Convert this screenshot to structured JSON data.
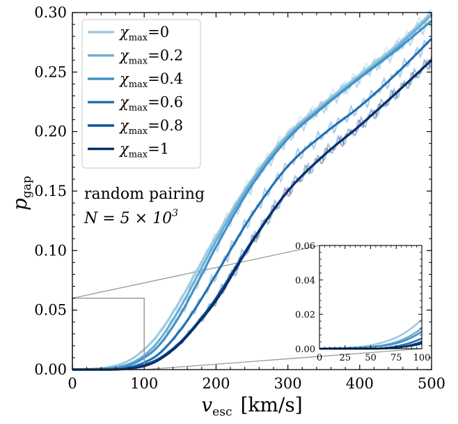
{
  "chart_data": {
    "type": "line",
    "xlabel_main": "v",
    "xlabel_sub": "esc",
    "xlabel_unit": "[km/s]",
    "ylabel_main": "p",
    "ylabel_sub": "gap",
    "xlim": [
      0,
      500
    ],
    "ylim": [
      0,
      0.3
    ],
    "xticks": [
      "0",
      "100",
      "200",
      "300",
      "400",
      "500"
    ],
    "yticks": [
      "0.00",
      "0.05",
      "0.10",
      "0.15",
      "0.20",
      "0.25",
      "0.30"
    ],
    "grid": false,
    "legend_position": "top-left",
    "annotation_line1": "random pairing",
    "annotation_line2_prefix": "N = 5 × 10",
    "annotation_line2_exp": "3",
    "legend_symbol": "χ",
    "legend_sub": "max",
    "series": [
      {
        "name": "0",
        "color": "#9ecae1",
        "x": [
          0,
          50,
          80,
          100,
          120,
          150,
          175,
          200,
          250,
          300,
          350,
          400,
          450,
          500
        ],
        "y": [
          0,
          0.002,
          0.008,
          0.017,
          0.03,
          0.058,
          0.085,
          0.112,
          0.16,
          0.198,
          0.224,
          0.248,
          0.272,
          0.3
        ]
      },
      {
        "name": "0.2",
        "color": "#6baed6",
        "x": [
          0,
          50,
          80,
          100,
          120,
          150,
          175,
          200,
          250,
          300,
          350,
          400,
          450,
          500
        ],
        "y": [
          0,
          0.001,
          0.005,
          0.012,
          0.024,
          0.052,
          0.08,
          0.108,
          0.158,
          0.196,
          0.222,
          0.246,
          0.27,
          0.298
        ]
      },
      {
        "name": "0.4",
        "color": "#4292c6",
        "x": [
          0,
          50,
          80,
          100,
          120,
          150,
          175,
          200,
          250,
          300,
          350,
          400,
          450,
          500
        ],
        "y": [
          0,
          0.001,
          0.004,
          0.01,
          0.02,
          0.046,
          0.074,
          0.103,
          0.155,
          0.194,
          0.221,
          0.245,
          0.268,
          0.293
        ]
      },
      {
        "name": "0.6",
        "color": "#2171b5",
        "x": [
          0,
          50,
          80,
          100,
          120,
          150,
          175,
          200,
          250,
          300,
          350,
          400,
          450,
          500
        ],
        "y": [
          0,
          0.0,
          0.002,
          0.006,
          0.013,
          0.033,
          0.055,
          0.08,
          0.13,
          0.171,
          0.198,
          0.221,
          0.248,
          0.278
        ]
      },
      {
        "name": "0.8",
        "color": "#08519c",
        "x": [
          0,
          50,
          80,
          100,
          120,
          150,
          175,
          200,
          250,
          300,
          350,
          400,
          450,
          500
        ],
        "y": [
          0,
          0.0,
          0.001,
          0.004,
          0.009,
          0.023,
          0.04,
          0.06,
          0.108,
          0.15,
          0.18,
          0.205,
          0.232,
          0.26
        ]
      },
      {
        "name": "1",
        "color": "#08306b",
        "x": [
          0,
          50,
          80,
          100,
          120,
          150,
          175,
          200,
          250,
          300,
          350,
          400,
          450,
          500
        ],
        "y": [
          0,
          0.0,
          0.001,
          0.003,
          0.008,
          0.022,
          0.039,
          0.058,
          0.107,
          0.15,
          0.18,
          0.205,
          0.232,
          0.26
        ]
      }
    ],
    "inset": {
      "xlim": [
        0,
        100
      ],
      "ylim": [
        0,
        0.06
      ],
      "xticks": [
        "0",
        "25",
        "50",
        "75",
        "100"
      ],
      "yticks": [
        "0.00",
        "0.02",
        "0.04",
        "0.06"
      ],
      "zoom_box": {
        "x": [
          0,
          100
        ],
        "y": [
          0,
          0.06
        ]
      }
    }
  }
}
